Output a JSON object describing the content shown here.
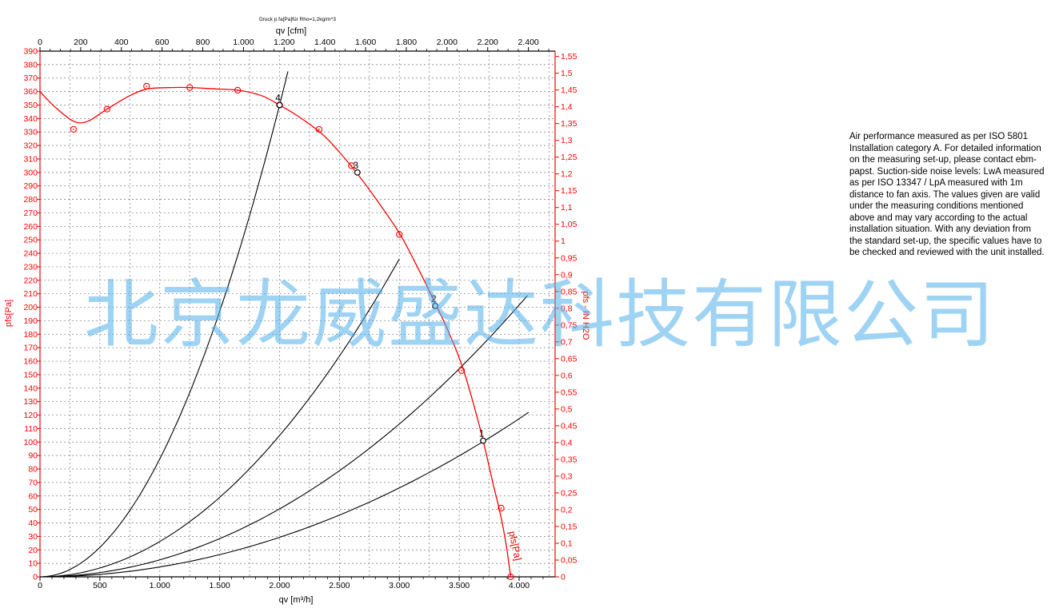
{
  "chart_data": {
    "type": "line",
    "title": "Druck p fa[Pa]für Rho=1,2kg/m^3",
    "xlabel": "qv [m³/h]",
    "xlabel_top": "qv [cfm]",
    "ylabel": "pfs[Pa]",
    "ylabel_right": "pfs - IN H2O",
    "curve_label": "pfs[Pa]",
    "xlim": [
      0,
      4300
    ],
    "ylim": [
      0,
      390
    ],
    "grid": true,
    "x_ticks": [
      0,
      500,
      1000,
      1500,
      2000,
      2500,
      3000,
      3500,
      4000
    ],
    "x_tick_labels": [
      "0",
      "500",
      "1.000",
      "1.500",
      "2.000",
      "2.500",
      "3.000",
      "3.500",
      "4.000"
    ],
    "x_top_ticks": [
      0,
      200,
      400,
      600,
      800,
      1000,
      1200,
      1400,
      1600,
      1800,
      2000,
      2200,
      2400
    ],
    "x_top_tick_labels": [
      "0",
      "200",
      "400",
      "600",
      "800",
      "1.000",
      "1.200",
      "1.400",
      "1.600",
      "1.800",
      "2.000",
      "2.200",
      "2.400"
    ],
    "y_ticks": [
      0,
      10,
      20,
      30,
      40,
      50,
      60,
      70,
      80,
      90,
      100,
      110,
      120,
      130,
      140,
      150,
      160,
      170,
      180,
      190,
      200,
      210,
      220,
      230,
      240,
      250,
      260,
      270,
      280,
      290,
      300,
      310,
      320,
      330,
      340,
      350,
      360,
      370,
      380,
      390
    ],
    "y_right_ticks": [
      0,
      0.05,
      0.1,
      0.15,
      0.2,
      0.25,
      0.3,
      0.35,
      0.4,
      0.45,
      0.5,
      0.55,
      0.6,
      0.65,
      0.7,
      0.75,
      0.8,
      0.85,
      0.9,
      0.95,
      1,
      1.05,
      1.1,
      1.15,
      1.2,
      1.25,
      1.3,
      1.35,
      1.4,
      1.45,
      1.5,
      1.55
    ],
    "y_right_tick_labels": [
      "0",
      "0,05",
      "0,1",
      "0,15",
      "0,2",
      "0,25",
      "0,3",
      "0,35",
      "0,4",
      "0,45",
      "0,5",
      "0,55",
      "0,6",
      "0,65",
      "0,7",
      "0,75",
      "0,8",
      "0,85",
      "0,9",
      "0,95",
      "1",
      "1,05",
      "1,1",
      "1,15",
      "1,2",
      "1,25",
      "1,3",
      "1,35",
      "1,4",
      "1,45",
      "1,5",
      "1,55"
    ],
    "fan_curve": {
      "color": "#ff0000",
      "x": [
        0,
        120,
        280,
        400,
        560,
        750,
        900,
        1100,
        1250,
        1450,
        1650,
        1850,
        2000,
        2150,
        2350,
        2500,
        2650,
        2800,
        3000,
        3150,
        3300,
        3420,
        3530,
        3620,
        3700,
        3780,
        3840,
        3890,
        3930
      ],
      "y": [
        360,
        349,
        338,
        338,
        347,
        357,
        362,
        363,
        363,
        362,
        361,
        357,
        350,
        342,
        329,
        315,
        299,
        281,
        255,
        230,
        203,
        180,
        155,
        128,
        101,
        70,
        48,
        25,
        0
      ],
      "markers_x": [
        280,
        560,
        890,
        1250,
        1650,
        2000,
        2330,
        2600,
        3000,
        3520,
        3850,
        3930
      ],
      "markers_y": [
        332,
        347,
        364,
        363,
        361,
        350,
        332,
        305,
        254,
        153,
        51,
        0
      ]
    },
    "system_curves": [
      {
        "k": 8.75e-05,
        "x_end": 2070
      },
      {
        "k": 2.62e-05,
        "x_end": 3000
      },
      {
        "k": 1.26e-05,
        "x_end": 4070
      },
      {
        "k": 7.33e-06,
        "x_end": 4080
      }
    ],
    "operating_points": [
      {
        "label": "1",
        "x": 3700,
        "y": 101
      },
      {
        "label": "2",
        "x": 3300,
        "y": 201
      },
      {
        "label": "3",
        "x": 2650,
        "y": 300
      },
      {
        "label": "4",
        "x": 2000,
        "y": 350
      }
    ],
    "colors": {
      "fan_curve": "#ff0000",
      "system_curve": "#000000",
      "axis_left": "#ff0000",
      "axis_right": "#ff0000",
      "axis_bottom": "#000000",
      "grid": "#777777",
      "watermark": "#50afeb"
    }
  },
  "note": {
    "text": "Air performance measured as per ISO 5801 Installation category A. For detailed information on the measuring set-up, please contact ebm-papst. Suction-side noise levels: LwA measured as per ISO 13347 / LpA measured with 1m distance to fan axis. The values given are valid under the measuring conditions mentioned above and may vary according to the actual installation situation. With any deviation from the standard set-up, the specific values have to be checked and reviewed with the unit installed."
  },
  "watermark": {
    "text": "北京龙威盛达科技有限公司"
  }
}
